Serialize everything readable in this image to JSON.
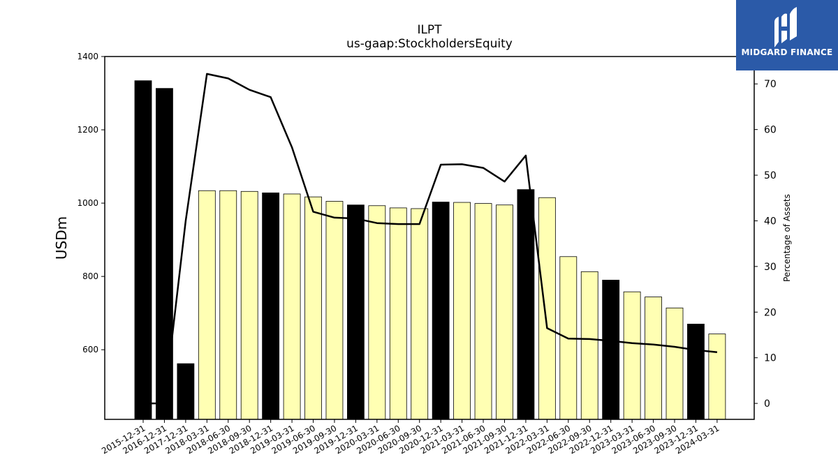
{
  "chart_data": {
    "type": "bar",
    "title": "ILPT",
    "subtitle": "us-gaap:StockholdersEquity",
    "ylabel": "USDm",
    "y2label": "Percentage of Assets",
    "ylim": [
      410,
      1400
    ],
    "y2lim": [
      -3.5,
      76
    ],
    "yticks": [
      600,
      800,
      1000,
      1200,
      1400
    ],
    "y2ticks": [
      0,
      10,
      20,
      30,
      40,
      50,
      60,
      70
    ],
    "categories": [
      "2015-12-31",
      "2016-12-31",
      "2017-12-31",
      "2018-03-31",
      "2018-06-30",
      "2018-09-30",
      "2018-12-31",
      "2019-03-31",
      "2019-06-30",
      "2019-09-30",
      "2019-12-31",
      "2020-03-31",
      "2020-06-30",
      "2020-09-30",
      "2020-12-31",
      "2021-03-31",
      "2021-06-30",
      "2021-09-30",
      "2021-12-31",
      "2022-03-31",
      "2022-06-30",
      "2022-09-30",
      "2022-12-31",
      "2023-03-31",
      "2023-06-30",
      "2023-09-30",
      "2023-12-31",
      "2024-03-31"
    ],
    "values": [
      1334,
      1313,
      562,
      1034,
      1034,
      1032,
      1028,
      1025,
      1017,
      1005,
      995,
      993,
      987,
      985,
      1003,
      1002,
      999,
      995,
      1037,
      1015,
      854,
      813,
      790,
      758,
      744,
      714,
      670,
      643
    ],
    "year_end": [
      true,
      true,
      true,
      false,
      false,
      false,
      true,
      false,
      false,
      false,
      true,
      false,
      false,
      false,
      true,
      false,
      false,
      false,
      true,
      false,
      false,
      false,
      true,
      false,
      false,
      false,
      true,
      false
    ],
    "percent_of_assets": [
      0,
      0,
      40,
      72.2,
      71.2,
      68.7,
      67.1,
      56.1,
      42,
      40.7,
      40.5,
      39.5,
      39.3,
      39.3,
      52.3,
      52.4,
      51.6,
      48.6,
      54.3,
      16.5,
      14.2,
      14.1,
      13.7,
      13.2,
      12.9,
      12.4,
      11.7,
      11.2
    ],
    "colors": {
      "year_end_bar": "#000000",
      "quarter_bar": "#ffffb3",
      "bar_edge": "#000000",
      "line": "#000000"
    },
    "grid": false
  },
  "logo": {
    "text": "MIDGARD FINANCE",
    "background": "#2b5aa8",
    "icon": "midgard-logo-icon"
  }
}
